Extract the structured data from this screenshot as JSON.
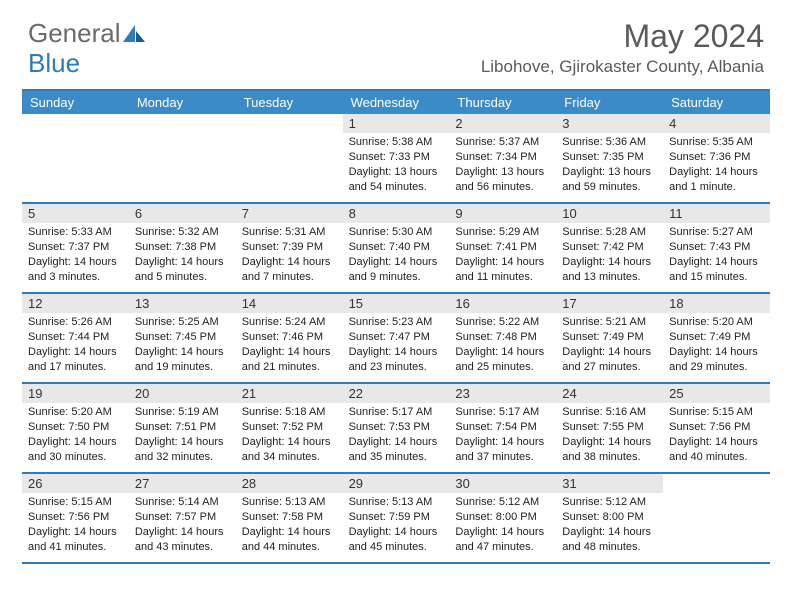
{
  "logo": {
    "text1": "General",
    "text2": "Blue"
  },
  "title": "May 2024",
  "location": "Libohove, Gjirokaster County, Albania",
  "colors": {
    "accent": "#2b7bbd",
    "header_bg": "#3b8bc9",
    "daynum_bg": "#e8e8e8",
    "text_gray": "#5a5a5a"
  },
  "day_headers": [
    "Sunday",
    "Monday",
    "Tuesday",
    "Wednesday",
    "Thursday",
    "Friday",
    "Saturday"
  ],
  "weeks": [
    [
      {
        "day": "",
        "sunrise": "",
        "sunset": "",
        "daylight": ""
      },
      {
        "day": "",
        "sunrise": "",
        "sunset": "",
        "daylight": ""
      },
      {
        "day": "",
        "sunrise": "",
        "sunset": "",
        "daylight": ""
      },
      {
        "day": "1",
        "sunrise": "Sunrise: 5:38 AM",
        "sunset": "Sunset: 7:33 PM",
        "daylight": "Daylight: 13 hours and 54 minutes."
      },
      {
        "day": "2",
        "sunrise": "Sunrise: 5:37 AM",
        "sunset": "Sunset: 7:34 PM",
        "daylight": "Daylight: 13 hours and 56 minutes."
      },
      {
        "day": "3",
        "sunrise": "Sunrise: 5:36 AM",
        "sunset": "Sunset: 7:35 PM",
        "daylight": "Daylight: 13 hours and 59 minutes."
      },
      {
        "day": "4",
        "sunrise": "Sunrise: 5:35 AM",
        "sunset": "Sunset: 7:36 PM",
        "daylight": "Daylight: 14 hours and 1 minute."
      }
    ],
    [
      {
        "day": "5",
        "sunrise": "Sunrise: 5:33 AM",
        "sunset": "Sunset: 7:37 PM",
        "daylight": "Daylight: 14 hours and 3 minutes."
      },
      {
        "day": "6",
        "sunrise": "Sunrise: 5:32 AM",
        "sunset": "Sunset: 7:38 PM",
        "daylight": "Daylight: 14 hours and 5 minutes."
      },
      {
        "day": "7",
        "sunrise": "Sunrise: 5:31 AM",
        "sunset": "Sunset: 7:39 PM",
        "daylight": "Daylight: 14 hours and 7 minutes."
      },
      {
        "day": "8",
        "sunrise": "Sunrise: 5:30 AM",
        "sunset": "Sunset: 7:40 PM",
        "daylight": "Daylight: 14 hours and 9 minutes."
      },
      {
        "day": "9",
        "sunrise": "Sunrise: 5:29 AM",
        "sunset": "Sunset: 7:41 PM",
        "daylight": "Daylight: 14 hours and 11 minutes."
      },
      {
        "day": "10",
        "sunrise": "Sunrise: 5:28 AM",
        "sunset": "Sunset: 7:42 PM",
        "daylight": "Daylight: 14 hours and 13 minutes."
      },
      {
        "day": "11",
        "sunrise": "Sunrise: 5:27 AM",
        "sunset": "Sunset: 7:43 PM",
        "daylight": "Daylight: 14 hours and 15 minutes."
      }
    ],
    [
      {
        "day": "12",
        "sunrise": "Sunrise: 5:26 AM",
        "sunset": "Sunset: 7:44 PM",
        "daylight": "Daylight: 14 hours and 17 minutes."
      },
      {
        "day": "13",
        "sunrise": "Sunrise: 5:25 AM",
        "sunset": "Sunset: 7:45 PM",
        "daylight": "Daylight: 14 hours and 19 minutes."
      },
      {
        "day": "14",
        "sunrise": "Sunrise: 5:24 AM",
        "sunset": "Sunset: 7:46 PM",
        "daylight": "Daylight: 14 hours and 21 minutes."
      },
      {
        "day": "15",
        "sunrise": "Sunrise: 5:23 AM",
        "sunset": "Sunset: 7:47 PM",
        "daylight": "Daylight: 14 hours and 23 minutes."
      },
      {
        "day": "16",
        "sunrise": "Sunrise: 5:22 AM",
        "sunset": "Sunset: 7:48 PM",
        "daylight": "Daylight: 14 hours and 25 minutes."
      },
      {
        "day": "17",
        "sunrise": "Sunrise: 5:21 AM",
        "sunset": "Sunset: 7:49 PM",
        "daylight": "Daylight: 14 hours and 27 minutes."
      },
      {
        "day": "18",
        "sunrise": "Sunrise: 5:20 AM",
        "sunset": "Sunset: 7:49 PM",
        "daylight": "Daylight: 14 hours and 29 minutes."
      }
    ],
    [
      {
        "day": "19",
        "sunrise": "Sunrise: 5:20 AM",
        "sunset": "Sunset: 7:50 PM",
        "daylight": "Daylight: 14 hours and 30 minutes."
      },
      {
        "day": "20",
        "sunrise": "Sunrise: 5:19 AM",
        "sunset": "Sunset: 7:51 PM",
        "daylight": "Daylight: 14 hours and 32 minutes."
      },
      {
        "day": "21",
        "sunrise": "Sunrise: 5:18 AM",
        "sunset": "Sunset: 7:52 PM",
        "daylight": "Daylight: 14 hours and 34 minutes."
      },
      {
        "day": "22",
        "sunrise": "Sunrise: 5:17 AM",
        "sunset": "Sunset: 7:53 PM",
        "daylight": "Daylight: 14 hours and 35 minutes."
      },
      {
        "day": "23",
        "sunrise": "Sunrise: 5:17 AM",
        "sunset": "Sunset: 7:54 PM",
        "daylight": "Daylight: 14 hours and 37 minutes."
      },
      {
        "day": "24",
        "sunrise": "Sunrise: 5:16 AM",
        "sunset": "Sunset: 7:55 PM",
        "daylight": "Daylight: 14 hours and 38 minutes."
      },
      {
        "day": "25",
        "sunrise": "Sunrise: 5:15 AM",
        "sunset": "Sunset: 7:56 PM",
        "daylight": "Daylight: 14 hours and 40 minutes."
      }
    ],
    [
      {
        "day": "26",
        "sunrise": "Sunrise: 5:15 AM",
        "sunset": "Sunset: 7:56 PM",
        "daylight": "Daylight: 14 hours and 41 minutes."
      },
      {
        "day": "27",
        "sunrise": "Sunrise: 5:14 AM",
        "sunset": "Sunset: 7:57 PM",
        "daylight": "Daylight: 14 hours and 43 minutes."
      },
      {
        "day": "28",
        "sunrise": "Sunrise: 5:13 AM",
        "sunset": "Sunset: 7:58 PM",
        "daylight": "Daylight: 14 hours and 44 minutes."
      },
      {
        "day": "29",
        "sunrise": "Sunrise: 5:13 AM",
        "sunset": "Sunset: 7:59 PM",
        "daylight": "Daylight: 14 hours and 45 minutes."
      },
      {
        "day": "30",
        "sunrise": "Sunrise: 5:12 AM",
        "sunset": "Sunset: 8:00 PM",
        "daylight": "Daylight: 14 hours and 47 minutes."
      },
      {
        "day": "31",
        "sunrise": "Sunrise: 5:12 AM",
        "sunset": "Sunset: 8:00 PM",
        "daylight": "Daylight: 14 hours and 48 minutes."
      },
      {
        "day": "",
        "sunrise": "",
        "sunset": "",
        "daylight": ""
      }
    ]
  ]
}
